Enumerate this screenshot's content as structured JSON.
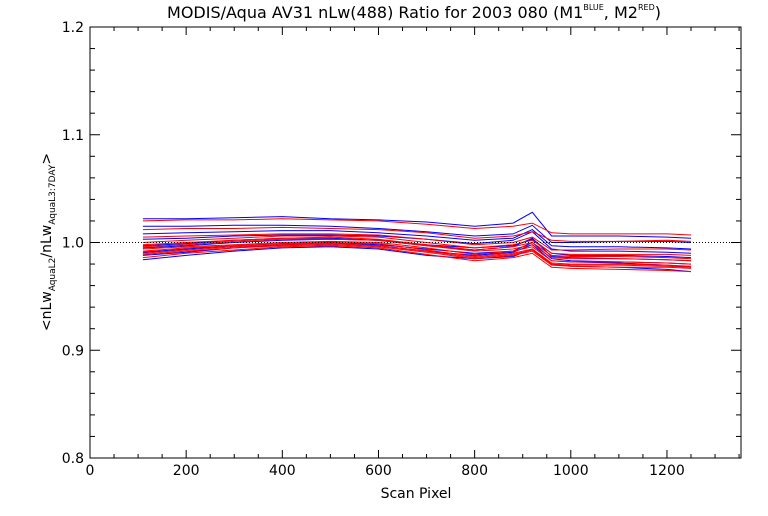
{
  "chart_data": {
    "type": "line",
    "title_main": "MODIS/Aqua AV31 nLw(488) Ratio for 2003 080 (M1",
    "title_sup1": "BLUE",
    "title_mid": ", M2",
    "title_sup2": "RED",
    "title_end": ")",
    "xlabel": "Scan Pixel",
    "ylabel_parts": {
      "open": "<nLw",
      "sub1": "AquaL2",
      "slash": "/nLw",
      "sub2": "AquaL3:7DAY",
      "close": ">"
    },
    "xlim": [
      0,
      1354
    ],
    "ylim": [
      0.8,
      1.2
    ],
    "xticks": [
      0,
      200,
      400,
      600,
      800,
      1000,
      1200
    ],
    "xtick_labels": [
      "0",
      "200",
      "400",
      "600",
      "800",
      "1000",
      "1200"
    ],
    "yticks": [
      0.8,
      0.9,
      1.0,
      1.1,
      1.2
    ],
    "ytick_labels": [
      "0.8",
      "0.9",
      "1.0",
      "1.1",
      "1.2"
    ],
    "reference_line": 1.0,
    "colors": {
      "M1": "#0000ff",
      "M2": "#ff0000",
      "axes": "#000000",
      "reference": "#000000"
    },
    "x": [
      110,
      200,
      300,
      400,
      500,
      600,
      700,
      800,
      880,
      920,
      960,
      1000,
      1100,
      1200,
      1250
    ],
    "series": [
      {
        "group": "M1",
        "values": [
          1.022,
          1.022,
          1.023,
          1.024,
          1.022,
          1.021,
          1.019,
          1.015,
          1.018,
          1.028,
          1.006,
          1.006,
          1.006,
          1.005,
          1.004
        ]
      },
      {
        "group": "M1",
        "values": [
          1.015,
          1.015,
          1.016,
          1.016,
          1.015,
          1.013,
          1.01,
          1.006,
          1.008,
          1.016,
          1.0,
          1.0,
          1.001,
          1.001,
          1.0
        ]
      },
      {
        "group": "M1",
        "values": [
          1.003,
          1.004,
          1.006,
          1.007,
          1.007,
          1.006,
          1.003,
          0.999,
          1.002,
          1.01,
          0.994,
          0.992,
          0.992,
          0.991,
          0.99
        ]
      },
      {
        "group": "M1",
        "values": [
          0.995,
          0.997,
          1.0,
          1.002,
          1.003,
          1.002,
          0.997,
          0.993,
          0.996,
          1.004,
          0.987,
          0.986,
          0.985,
          0.984,
          0.983
        ]
      },
      {
        "group": "M1",
        "values": [
          0.988,
          0.991,
          0.995,
          0.998,
          0.999,
          0.997,
          0.992,
          0.988,
          0.991,
          0.998,
          0.983,
          0.982,
          0.981,
          0.979,
          0.977
        ]
      },
      {
        "group": "M1",
        "values": [
          0.984,
          0.988,
          0.992,
          0.995,
          0.996,
          0.994,
          0.988,
          0.985,
          0.987,
          0.994,
          0.98,
          0.978,
          0.977,
          0.975,
          0.973
        ]
      },
      {
        "group": "M1",
        "values": [
          0.997,
          0.999,
          1.002,
          1.004,
          1.004,
          1.002,
          0.998,
          0.995,
          0.997,
          1.003,
          0.99,
          0.988,
          0.988,
          0.987,
          0.986
        ]
      },
      {
        "group": "M1",
        "values": [
          0.991,
          0.994,
          0.997,
          0.999,
          1.0,
          0.998,
          0.994,
          0.99,
          0.992,
          1.0,
          0.985,
          0.983,
          0.982,
          0.981,
          0.98
        ]
      },
      {
        "group": "M1",
        "values": [
          1.008,
          1.009,
          1.01,
          1.011,
          1.011,
          1.009,
          1.006,
          1.002,
          1.004,
          1.012,
          0.997,
          0.996,
          0.996,
          0.995,
          0.994
        ]
      },
      {
        "group": "M2",
        "values": [
          1.02,
          1.021,
          1.021,
          1.022,
          1.021,
          1.02,
          1.017,
          1.013,
          1.015,
          1.018,
          1.009,
          1.008,
          1.008,
          1.008,
          1.007
        ]
      },
      {
        "group": "M2",
        "values": [
          1.012,
          1.013,
          1.013,
          1.014,
          1.013,
          1.012,
          1.009,
          1.004,
          1.006,
          1.01,
          1.002,
          1.001,
          1.001,
          1.002,
          1.001
        ]
      },
      {
        "group": "M2",
        "values": [
          1.005,
          1.006,
          1.007,
          1.008,
          1.008,
          1.007,
          1.003,
          0.998,
          1.0,
          1.005,
          0.993,
          0.993,
          0.994,
          0.994,
          0.993
        ]
      },
      {
        "group": "M2",
        "values": [
          1.0,
          1.002,
          1.004,
          1.006,
          1.006,
          1.005,
          1.0,
          0.995,
          0.998,
          1.002,
          0.99,
          0.989,
          0.989,
          0.989,
          0.988
        ]
      },
      {
        "group": "M2",
        "values": [
          0.996,
          0.998,
          1.001,
          1.003,
          1.003,
          1.002,
          0.997,
          0.992,
          0.994,
          0.998,
          0.986,
          0.985,
          0.985,
          0.984,
          0.983
        ]
      },
      {
        "group": "M2",
        "values": [
          0.994,
          0.996,
          0.998,
          1.0,
          1.001,
          1.0,
          0.995,
          0.989,
          0.992,
          0.996,
          0.983,
          0.982,
          0.982,
          0.981,
          0.98
        ]
      },
      {
        "group": "M2",
        "values": [
          0.992,
          0.995,
          0.997,
          0.999,
          1.0,
          0.999,
          0.993,
          0.987,
          0.99,
          0.994,
          0.981,
          0.98,
          0.98,
          0.979,
          0.978
        ]
      },
      {
        "group": "M2",
        "values": [
          0.989,
          0.992,
          0.995,
          0.997,
          0.998,
          0.996,
          0.991,
          0.985,
          0.988,
          0.992,
          0.979,
          0.978,
          0.977,
          0.977,
          0.976
        ]
      },
      {
        "group": "M2",
        "values": [
          0.986,
          0.99,
          0.993,
          0.996,
          0.997,
          0.995,
          0.989,
          0.983,
          0.986,
          0.99,
          0.977,
          0.976,
          0.975,
          0.974,
          0.973
        ]
      },
      {
        "group": "M2",
        "values": [
          0.998,
          1.0,
          1.002,
          1.004,
          1.005,
          1.003,
          0.998,
          0.993,
          0.996,
          1.0,
          0.988,
          0.987,
          0.987,
          0.986,
          0.985
        ]
      },
      {
        "group": "M2",
        "values": [
          0.99,
          0.993,
          0.996,
          0.998,
          0.999,
          0.997,
          0.992,
          0.986,
          0.989,
          0.993,
          0.98,
          0.979,
          0.979,
          0.978,
          0.977
        ]
      }
    ]
  }
}
